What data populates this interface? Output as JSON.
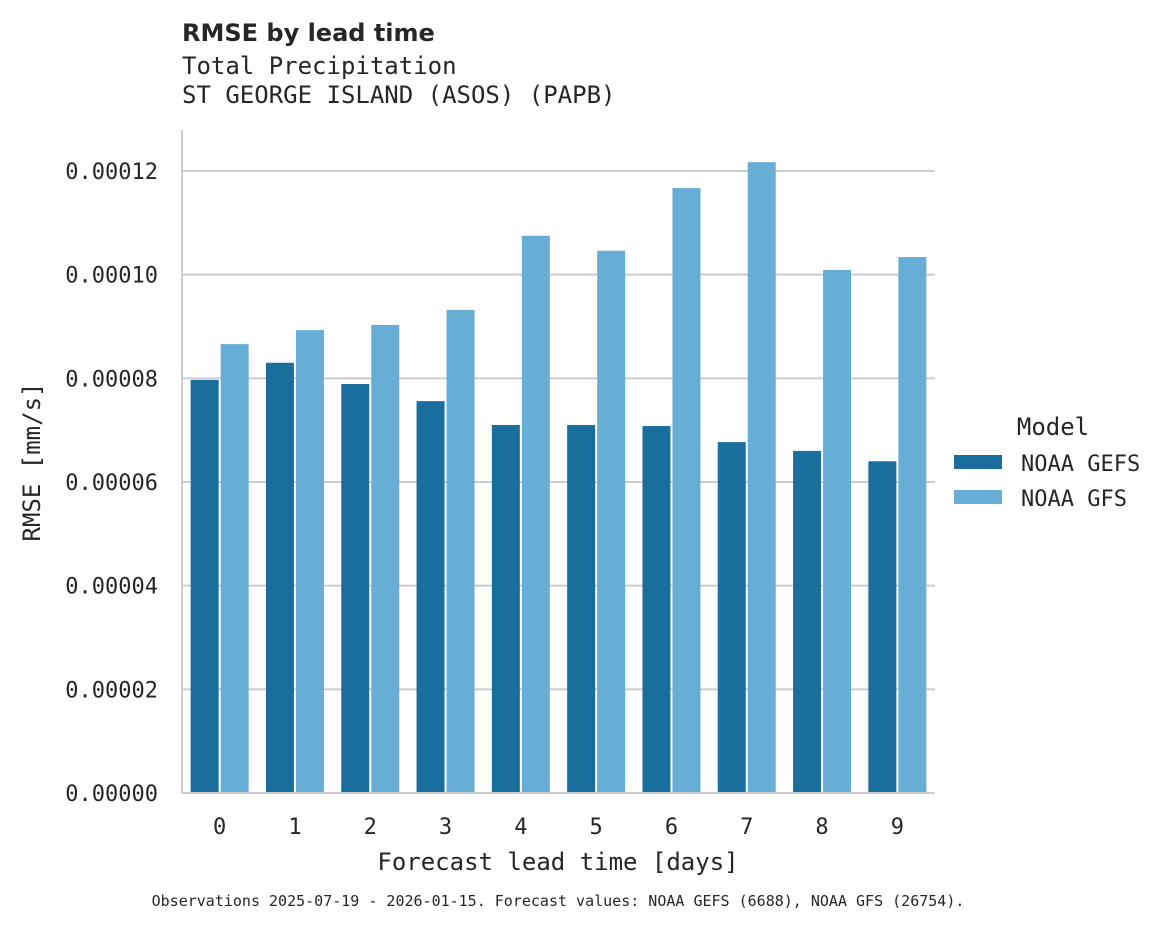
{
  "chart_data": {
    "type": "bar",
    "title": "RMSE by lead time",
    "subtitle": [
      "Total Precipitation",
      "ST GEORGE ISLAND (ASOS) (PAPB)"
    ],
    "xlabel": "Forecast lead time [days]",
    "ylabel": "RMSE [mm/s]",
    "categories": [
      "0",
      "1",
      "2",
      "3",
      "4",
      "5",
      "6",
      "7",
      "8",
      "9"
    ],
    "ylim": [
      0,
      0.000128
    ],
    "yticks": [
      0,
      2e-05,
      4e-05,
      6e-05,
      8e-05,
      0.0001,
      0.00012
    ],
    "ytick_labels": [
      "0.00000",
      "0.00002",
      "0.00004",
      "0.00006",
      "0.00008",
      "0.00010",
      "0.00012"
    ],
    "grid": "horizontal",
    "legend": {
      "title": "Model",
      "placement": "right"
    },
    "series": [
      {
        "name": "NOAA GEFS",
        "color": "#1a6e9e",
        "values": [
          7.97e-05,
          8.3e-05,
          7.89e-05,
          7.56e-05,
          7.1e-05,
          7.1e-05,
          7.08e-05,
          6.77e-05,
          6.6e-05,
          6.4e-05
        ]
      },
      {
        "name": "NOAA GFS",
        "color": "#67aed6",
        "values": [
          8.66e-05,
          8.93e-05,
          9.03e-05,
          9.32e-05,
          0.0001075,
          0.0001046,
          0.0001167,
          0.0001217,
          0.0001009,
          0.0001034
        ]
      }
    ],
    "footnote": "Observations 2025-07-19 - 2026-01-15. Forecast values: NOAA GEFS (6688), NOAA GFS (26754)."
  }
}
